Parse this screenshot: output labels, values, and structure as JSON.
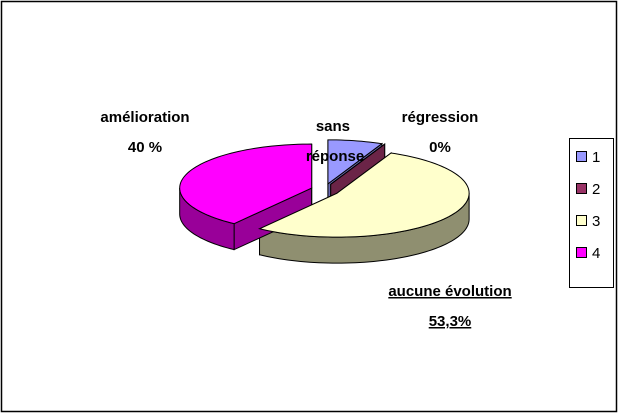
{
  "chart_data": {
    "type": "pie3d",
    "categories": [
      "1",
      "2",
      "3",
      "4"
    ],
    "values": [
      6.7,
      0,
      53.3,
      40
    ],
    "value_labels": [
      null,
      "0%",
      "53,3%",
      "40 %"
    ],
    "data_labels": [
      "sans réponse",
      "régression",
      "aucune évolution",
      "amélioration"
    ],
    "colors": [
      "#9999ff",
      "#993366",
      "#ffffcc",
      "#ff00ff"
    ],
    "side_colors": [
      "#6b6bb3",
      "#6b2447",
      "#8f8f70",
      "#990099"
    ],
    "legend": "right"
  }
}
